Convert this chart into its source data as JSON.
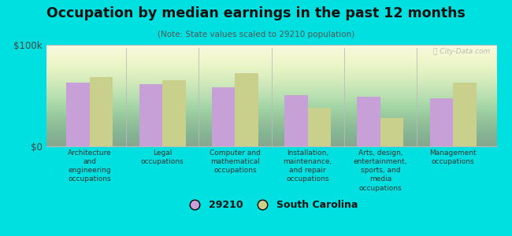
{
  "title": "Occupation by median earnings in the past 12 months",
  "subtitle": "(Note: State values scaled to 29210 population)",
  "background_color": "#00e0e0",
  "plot_bg_top": "#c8ddb0",
  "plot_bg_bottom": "#f0f5e0",
  "categories": [
    "Architecture\nand\nengineering\noccupations",
    "Legal\noccupations",
    "Computer and\nmathematical\noccupations",
    "Installation,\nmaintenance,\nand repair\noccupations",
    "Arts, design,\nentertainment,\nsports, and\nmedia\noccupations",
    "Management\noccupations"
  ],
  "values_29210": [
    63000,
    61000,
    58000,
    50000,
    49000,
    47000
  ],
  "values_sc": [
    68000,
    65000,
    72000,
    38000,
    28000,
    63000
  ],
  "color_29210": "#c8a0d8",
  "color_sc": "#c8d08c",
  "ylim": [
    0,
    100000
  ],
  "ytick_labels": [
    "$0",
    "$100k"
  ],
  "legend_labels": [
    "29210",
    "South Carolina"
  ],
  "watermark": "Ⓜ City-Data.com"
}
